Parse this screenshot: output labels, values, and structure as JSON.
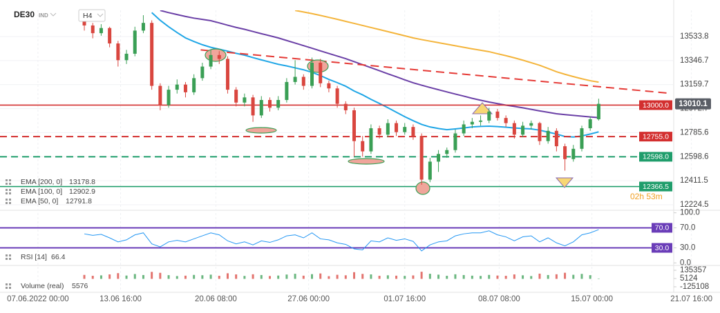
{
  "header": {
    "symbol": "DE30",
    "market": "IND",
    "timeframe": "H4"
  },
  "chart_data": {
    "type": "candlestick",
    "xlim": [
      -10,
      69.9
    ],
    "xticks": [
      {
        "value": -5.5,
        "label": "07.06.2022  00:00"
      },
      {
        "value": 4.3,
        "label": "13.06  16:00"
      },
      {
        "value": 15.6,
        "label": "20.06  08:00"
      },
      {
        "value": 26.6,
        "label": "27.06  00:00"
      },
      {
        "value": 38,
        "label": "01.07  16:00"
      },
      {
        "value": 49.2,
        "label": "08.07  08:00"
      },
      {
        "value": 60.2,
        "label": "15.07  00:00"
      },
      {
        "value": 72,
        "label": "21.07  16:00"
      }
    ],
    "ylim": [
      12181.6,
      13737.7
    ],
    "yticks": [
      13533.8,
      13346.7,
      13159.7,
      12972.7,
      12785.6,
      12598.6,
      12411.5,
      12224.5
    ],
    "grid": true,
    "up_color": "#3a9f55",
    "down_color": "#d9463f",
    "ohlc": [
      [
        13660,
        13700,
        13580,
        13620
      ],
      [
        13620,
        13640,
        13520,
        13560
      ],
      [
        13560,
        13630,
        13540,
        13600
      ],
      [
        13600,
        13610,
        13450,
        13480
      ],
      [
        13480,
        13500,
        13300,
        13350
      ],
      [
        13350,
        13430,
        13320,
        13400
      ],
      [
        13400,
        13610,
        13380,
        13580
      ],
      [
        13580,
        13700,
        13560,
        13640
      ],
      [
        13640,
        13660,
        13120,
        13150
      ],
      [
        13150,
        13170,
        12960,
        13000
      ],
      [
        13000,
        13150,
        12980,
        13120
      ],
      [
        13120,
        13200,
        13090,
        13160
      ],
      [
        13160,
        13180,
        13060,
        13100
      ],
      [
        13100,
        13240,
        13080,
        13210
      ],
      [
        13210,
        13330,
        13190,
        13300
      ],
      [
        13300,
        13430,
        13280,
        13390
      ],
      [
        13390,
        13420,
        13320,
        13360
      ],
      [
        13360,
        13380,
        13090,
        13120
      ],
      [
        13120,
        13140,
        12990,
        13020
      ],
      [
        13020,
        13090,
        12990,
        13060
      ],
      [
        13060,
        13080,
        12870,
        12920
      ],
      [
        12920,
        13070,
        12900,
        13040
      ],
      [
        13040,
        13060,
        12950,
        12980
      ],
      [
        12980,
        13070,
        12960,
        13040
      ],
      [
        13040,
        13210,
        13020,
        13180
      ],
      [
        13180,
        13350,
        13160,
        13220
      ],
      [
        13220,
        13240,
        13120,
        13150
      ],
      [
        13150,
        13370,
        13130,
        13330
      ],
      [
        13330,
        13360,
        13140,
        13170
      ],
      [
        13170,
        13190,
        13100,
        13130
      ],
      [
        13130,
        13150,
        12980,
        13010
      ],
      [
        13010,
        13030,
        12930,
        12960
      ],
      [
        12960,
        12980,
        12600,
        12720
      ],
      [
        12720,
        12760,
        12600,
        12640
      ],
      [
        12640,
        12850,
        12620,
        12820
      ],
      [
        12820,
        12840,
        12740,
        12770
      ],
      [
        12770,
        12890,
        12750,
        12860
      ],
      [
        12860,
        12880,
        12760,
        12790
      ],
      [
        12790,
        12860,
        12770,
        12830
      ],
      [
        12830,
        12850,
        12730,
        12760
      ],
      [
        12760,
        12780,
        12380,
        12420
      ],
      [
        12420,
        12590,
        12400,
        12560
      ],
      [
        12560,
        12650,
        12480,
        12620
      ],
      [
        12620,
        12670,
        12590,
        12650
      ],
      [
        12650,
        12810,
        12630,
        12780
      ],
      [
        12780,
        12880,
        12760,
        12850
      ],
      [
        12850,
        12900,
        12820,
        12870
      ],
      [
        12870,
        12920,
        12840,
        12880
      ],
      [
        12880,
        12980,
        12860,
        12950
      ],
      [
        12950,
        12970,
        12880,
        12900
      ],
      [
        12900,
        12920,
        12830,
        12860
      ],
      [
        12860,
        12880,
        12740,
        12770
      ],
      [
        12770,
        12870,
        12750,
        12840
      ],
      [
        12840,
        12880,
        12810,
        12860
      ],
      [
        12860,
        12870,
        12690,
        12720
      ],
      [
        12720,
        12830,
        12700,
        12800
      ],
      [
        12800,
        12820,
        12640,
        12680
      ],
      [
        12680,
        12700,
        12490,
        12580
      ],
      [
        12580,
        12690,
        12560,
        12660
      ],
      [
        12660,
        12840,
        12640,
        12820
      ],
      [
        12820,
        12910,
        12800,
        12890
      ],
      [
        12890,
        13050,
        12880,
        13010
      ]
    ],
    "series": [
      {
        "name": "EMA [200, 0]",
        "color": "#f4b43a",
        "values": [
          null,
          null,
          null,
          null,
          null,
          null,
          null,
          null,
          null,
          null,
          null,
          null,
          null,
          null,
          null,
          null,
          null,
          null,
          null,
          null,
          null,
          null,
          null,
          null,
          null,
          13737,
          13725,
          13712,
          13698,
          13683,
          13668,
          13652,
          13636,
          13620,
          13604,
          13588,
          13572,
          13556,
          13540,
          13523,
          13510,
          13498,
          13486,
          13474,
          13462,
          13450,
          13438,
          13427,
          13416,
          13400,
          13385,
          13368,
          13350,
          13330,
          13310,
          13285,
          13260,
          13240,
          13222,
          13205,
          13190,
          13178.8
        ]
      },
      {
        "name": "EMA [100, 0]",
        "color": "#6a3fa6",
        "values": [
          null,
          null,
          null,
          null,
          null,
          null,
          null,
          null,
          null,
          13737,
          13720,
          13705,
          13690,
          13677,
          13667,
          13657,
          13640,
          13622,
          13605,
          13590,
          13573,
          13556,
          13540,
          13523,
          13503,
          13483,
          13463,
          13443,
          13422,
          13402,
          13382,
          13362,
          13338,
          13315,
          13291,
          13268,
          13244,
          13221,
          13197,
          13174,
          13155,
          13137,
          13120,
          13103,
          13086,
          13070,
          13053,
          13038,
          13024,
          13012,
          13000,
          12990,
          12979,
          12967,
          12955,
          12944,
          12933,
          12926,
          12920,
          12914,
          12908,
          12902.9
        ]
      },
      {
        "name": "EMA [50, 0]",
        "color": "#1fa6e6",
        "values": [
          null,
          null,
          null,
          null,
          null,
          null,
          null,
          null,
          13720,
          13660,
          13610,
          13565,
          13523,
          13495,
          13470,
          13450,
          13435,
          13420,
          13403,
          13389,
          13370,
          13352,
          13335,
          13318,
          13305,
          13290,
          13275,
          13255,
          13230,
          13200,
          13175,
          13147,
          13110,
          13080,
          13045,
          13013,
          12980,
          12945,
          12910,
          12879,
          12850,
          12830,
          12818,
          12809,
          12815,
          12822,
          12830,
          12834,
          12836,
          12833,
          12828,
          12822,
          12818,
          12815,
          12805,
          12790,
          12775,
          12756,
          12752,
          12760,
          12775,
          12791.8
        ]
      }
    ],
    "levels": [
      {
        "value": 13000,
        "label": "13000.0",
        "color": "#d32f2f",
        "dashed": false
      },
      {
        "value": 12755,
        "label": "12755.0",
        "color": "#d32f2f",
        "dashed": true
      },
      {
        "value": 12598,
        "label": "12598.0",
        "color": "#1f9d6b",
        "dashed": true
      },
      {
        "value": 12366.5,
        "color": "#1f9d6b",
        "dashed": false
      }
    ],
    "trendline": {
      "x": [
        13.8,
        69.5
      ],
      "y": [
        13430,
        13092
      ],
      "color": "#e53935"
    },
    "last_price": 13010.1,
    "countdown": "02h 53m"
  },
  "rsi": {
    "name": "RSI [14]",
    "color": "#2196f3",
    "level_color": "#6a3db8",
    "ylim": [
      -5,
      105
    ],
    "yticks": [
      {
        "value": 100,
        "label": "100.0"
      },
      {
        "value": 70,
        "label": "70.0"
      },
      {
        "value": 30,
        "label": "30.0"
      },
      {
        "value": 0,
        "label": "0.0"
      }
    ],
    "levels": [
      {
        "value": 70,
        "label": "70.0"
      },
      {
        "value": 30,
        "label": "30.0"
      }
    ],
    "values": [
      58,
      55,
      57,
      50,
      42,
      46,
      56,
      60,
      38,
      32,
      42,
      45,
      42,
      48,
      54,
      60,
      56,
      44,
      38,
      42,
      36,
      44,
      41,
      46,
      54,
      56,
      50,
      60,
      48,
      46,
      40,
      37,
      28,
      26,
      44,
      42,
      50,
      45,
      48,
      43,
      24,
      36,
      42,
      44,
      54,
      58,
      60,
      60,
      64,
      56,
      52,
      44,
      52,
      54,
      42,
      50,
      40,
      34,
      42,
      56,
      60,
      66.4
    ]
  },
  "volume": {
    "name": "Volume  (real)",
    "ylim": [
      -168520,
      178768
    ],
    "yticks": [
      135357,
      5124,
      -125108
    ],
    "values": [
      62000,
      48000,
      55000,
      70000,
      90000,
      52000,
      76000,
      60000,
      110000,
      95000,
      58000,
      44000,
      50000,
      62000,
      57000,
      66000,
      48000,
      88000,
      70000,
      46000,
      72000,
      60000,
      45000,
      52000,
      68000,
      80000,
      50000,
      74000,
      85000,
      42000,
      64000,
      56000,
      105000,
      78000,
      70000,
      48000,
      56000,
      50000,
      46000,
      54000,
      112000,
      80000,
      66000,
      48000,
      72000,
      60000,
      50000,
      46000,
      62000,
      52000,
      48000,
      70000,
      56000,
      44000,
      82000,
      60000,
      72000,
      96000,
      64000,
      78000,
      58000,
      5576
    ]
  }
}
